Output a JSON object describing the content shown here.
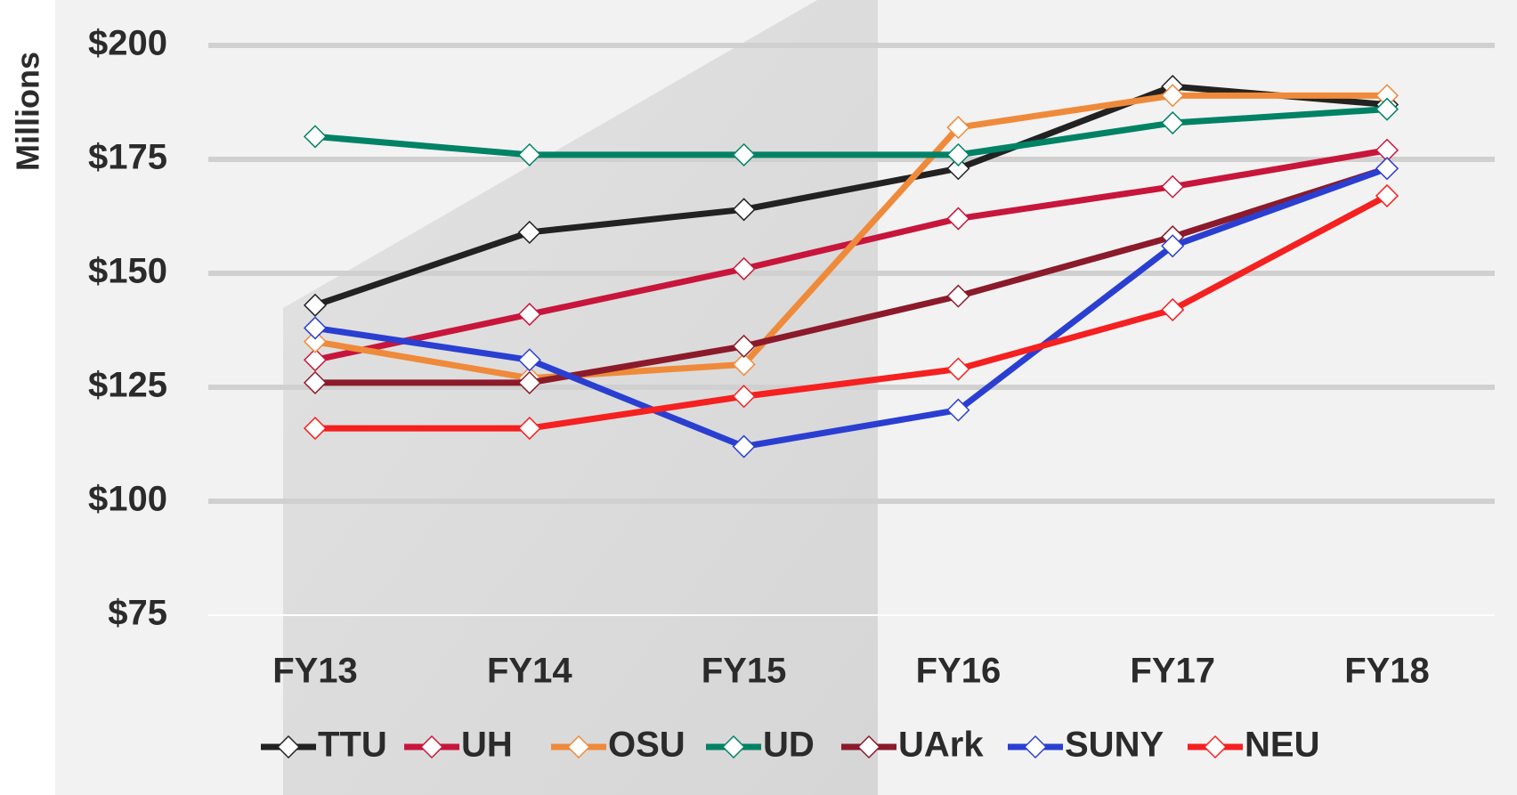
{
  "chart_data": {
    "type": "line",
    "y_label": "Millions",
    "categories": [
      "FY13",
      "FY14",
      "FY15",
      "FY16",
      "FY17",
      "FY18"
    ],
    "series": [
      {
        "name": "TTU",
        "color": "#222222",
        "values": [
          143,
          159,
          164,
          173,
          191,
          187
        ]
      },
      {
        "name": "UH",
        "color": "#c8153c",
        "values": [
          131,
          141,
          151,
          162,
          169,
          177
        ]
      },
      {
        "name": "OSU",
        "color": "#ef8a3a",
        "values": [
          135,
          127,
          130,
          182,
          189,
          189
        ]
      },
      {
        "name": "UD",
        "color": "#008265",
        "values": [
          180,
          176,
          176,
          176,
          183,
          186
        ]
      },
      {
        "name": "UArk",
        "color": "#8b1a2b",
        "values": [
          126,
          126,
          134,
          145,
          158,
          173
        ]
      },
      {
        "name": "SUNY",
        "color": "#2a3fd1",
        "values": [
          138,
          131,
          112,
          120,
          156,
          173
        ]
      },
      {
        "name": "NEU",
        "color": "#f52020",
        "values": [
          116,
          116,
          123,
          129,
          142,
          167
        ]
      }
    ],
    "ylim": [
      75,
      200
    ],
    "yticks": [
      {
        "value": 75,
        "label": "$75"
      },
      {
        "value": 100,
        "label": "$100"
      },
      {
        "value": 125,
        "label": "$125"
      },
      {
        "value": 150,
        "label": "$150"
      },
      {
        "value": 175,
        "label": "$175"
      },
      {
        "value": 200,
        "label": "$200"
      }
    ],
    "grid": true
  }
}
